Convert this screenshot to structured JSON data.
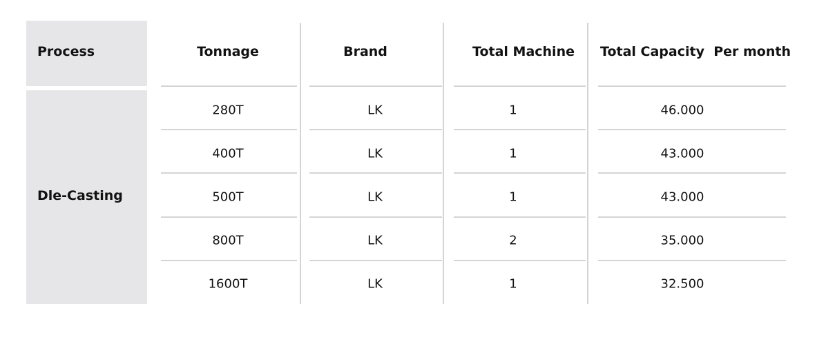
{
  "headers": [
    "Process",
    "Tonnage",
    "Brand",
    "Total Machine",
    "Total Capacity  Per month"
  ],
  "process": "Dle-Casting",
  "rows": [
    [
      "280T",
      "LK",
      "1",
      "46.000"
    ],
    [
      "400T",
      "LK",
      "1",
      "43.000"
    ],
    [
      "500T",
      "LK",
      "1",
      "43.000"
    ],
    [
      "800T",
      "LK",
      "2",
      "35.000"
    ],
    [
      "1600T",
      "LK",
      "1",
      "32.500"
    ]
  ]
}
